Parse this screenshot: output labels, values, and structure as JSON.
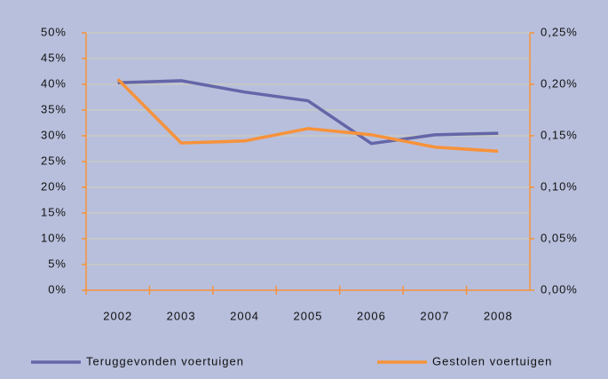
{
  "chart_data": {
    "type": "line",
    "categories": [
      "2002",
      "2003",
      "2004",
      "2005",
      "2006",
      "2007",
      "2008"
    ],
    "series": [
      {
        "name": "Teruggevonden voertuigen",
        "color": "#6466a8",
        "values": [
          40.3,
          40.7,
          38.5,
          36.8,
          28.5,
          30.2,
          30.5
        ]
      },
      {
        "name": "Gestolen voertuigen",
        "color": "#f7923a",
        "axis": "y2",
        "values": [
          0.205,
          0.143,
          0.145,
          0.157,
          0.151,
          0.139,
          0.135
        ]
      }
    ],
    "ylim": [
      0,
      50
    ],
    "yticks": [
      {
        "value": 0,
        "label": "0%"
      },
      {
        "value": 5,
        "label": "5%"
      },
      {
        "value": 10,
        "label": "10%"
      },
      {
        "value": 15,
        "label": "15%"
      },
      {
        "value": 20,
        "label": "20%"
      },
      {
        "value": 25,
        "label": "25%"
      },
      {
        "value": 30,
        "label": "30%"
      },
      {
        "value": 35,
        "label": "35%"
      },
      {
        "value": 40,
        "label": "40%"
      },
      {
        "value": 45,
        "label": "45%"
      },
      {
        "value": 50,
        "label": "50%"
      }
    ],
    "y2lim": [
      0,
      0.25
    ],
    "y2ticks": [
      {
        "value": 0,
        "label": "0,00%"
      },
      {
        "value": 0.05,
        "label": "0,05%"
      },
      {
        "value": 0.1,
        "label": "0,10%"
      },
      {
        "value": 0.15,
        "label": "0,15%"
      },
      {
        "value": 0.2,
        "label": "0,20%"
      },
      {
        "value": 0.25,
        "label": "0,25%"
      }
    ],
    "grid": true,
    "legend": "bottom"
  }
}
